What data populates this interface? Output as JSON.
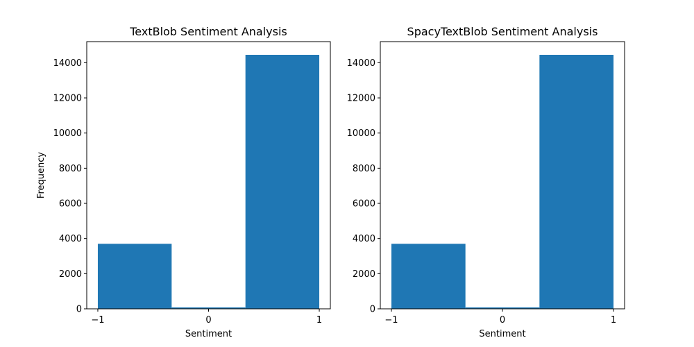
{
  "chart_data": [
    {
      "type": "bar",
      "title": "TextBlob Sentiment Analysis",
      "xlabel": "Sentiment",
      "ylabel": "Frequency",
      "bin_edges": [
        -1,
        -0.3333,
        0.3333,
        1
      ],
      "values": [
        3700,
        80,
        14450
      ],
      "xlim": [
        -1.1,
        1.1
      ],
      "ylim": [
        0,
        15200
      ],
      "xticks": [
        -1,
        0,
        1
      ],
      "xtick_labels": [
        "−1",
        "0",
        "1"
      ],
      "yticks": [
        0,
        2000,
        4000,
        6000,
        8000,
        10000,
        12000,
        14000
      ],
      "ytick_labels": [
        "0",
        "2000",
        "4000",
        "6000",
        "8000",
        "10000",
        "12000",
        "14000"
      ],
      "color": "#1f77b4",
      "grid": false
    },
    {
      "type": "bar",
      "title": "SpacyTextBlob Sentiment Analysis",
      "xlabel": "Sentiment",
      "ylabel": "",
      "bin_edges": [
        -1,
        -0.3333,
        0.3333,
        1
      ],
      "values": [
        3700,
        80,
        14450
      ],
      "xlim": [
        -1.1,
        1.1
      ],
      "ylim": [
        0,
        15200
      ],
      "xticks": [
        -1,
        0,
        1
      ],
      "xtick_labels": [
        "−1",
        "0",
        "1"
      ],
      "yticks": [
        0,
        2000,
        4000,
        6000,
        8000,
        10000,
        12000,
        14000
      ],
      "ytick_labels": [
        "0",
        "2000",
        "4000",
        "6000",
        "8000",
        "10000",
        "12000",
        "14000"
      ],
      "color": "#1f77b4",
      "grid": false
    }
  ]
}
